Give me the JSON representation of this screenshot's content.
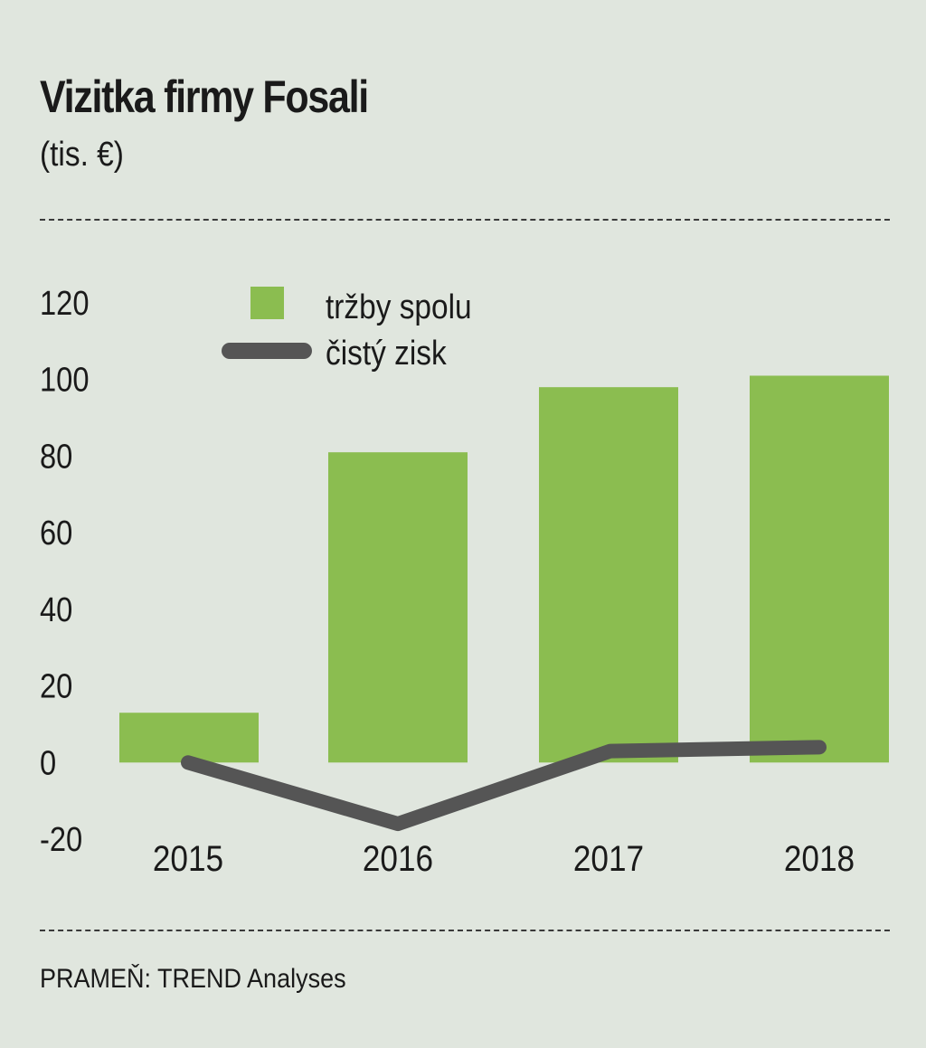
{
  "header": {
    "title": "Vizitka firmy Fosali",
    "subtitle": "(tis. €)"
  },
  "footer": {
    "source": "PRAMEŇ: TREND Analyses"
  },
  "chart_data": {
    "type": "bar",
    "categories": [
      "2015",
      "2016",
      "2017",
      "2018"
    ],
    "series": [
      {
        "name": "tržby spolu",
        "type": "bar",
        "values": [
          13,
          81,
          98,
          101
        ],
        "color": "#8bbd50"
      },
      {
        "name": "čistý zisk",
        "type": "line",
        "values": [
          0,
          -16,
          3,
          4
        ],
        "color": "#555555"
      }
    ],
    "yticks": [
      "120",
      "100",
      "80",
      "60",
      "40",
      "20",
      "0",
      "-20"
    ],
    "ylim": [
      -20,
      120
    ],
    "grid": false,
    "legend_position": "top-left"
  }
}
